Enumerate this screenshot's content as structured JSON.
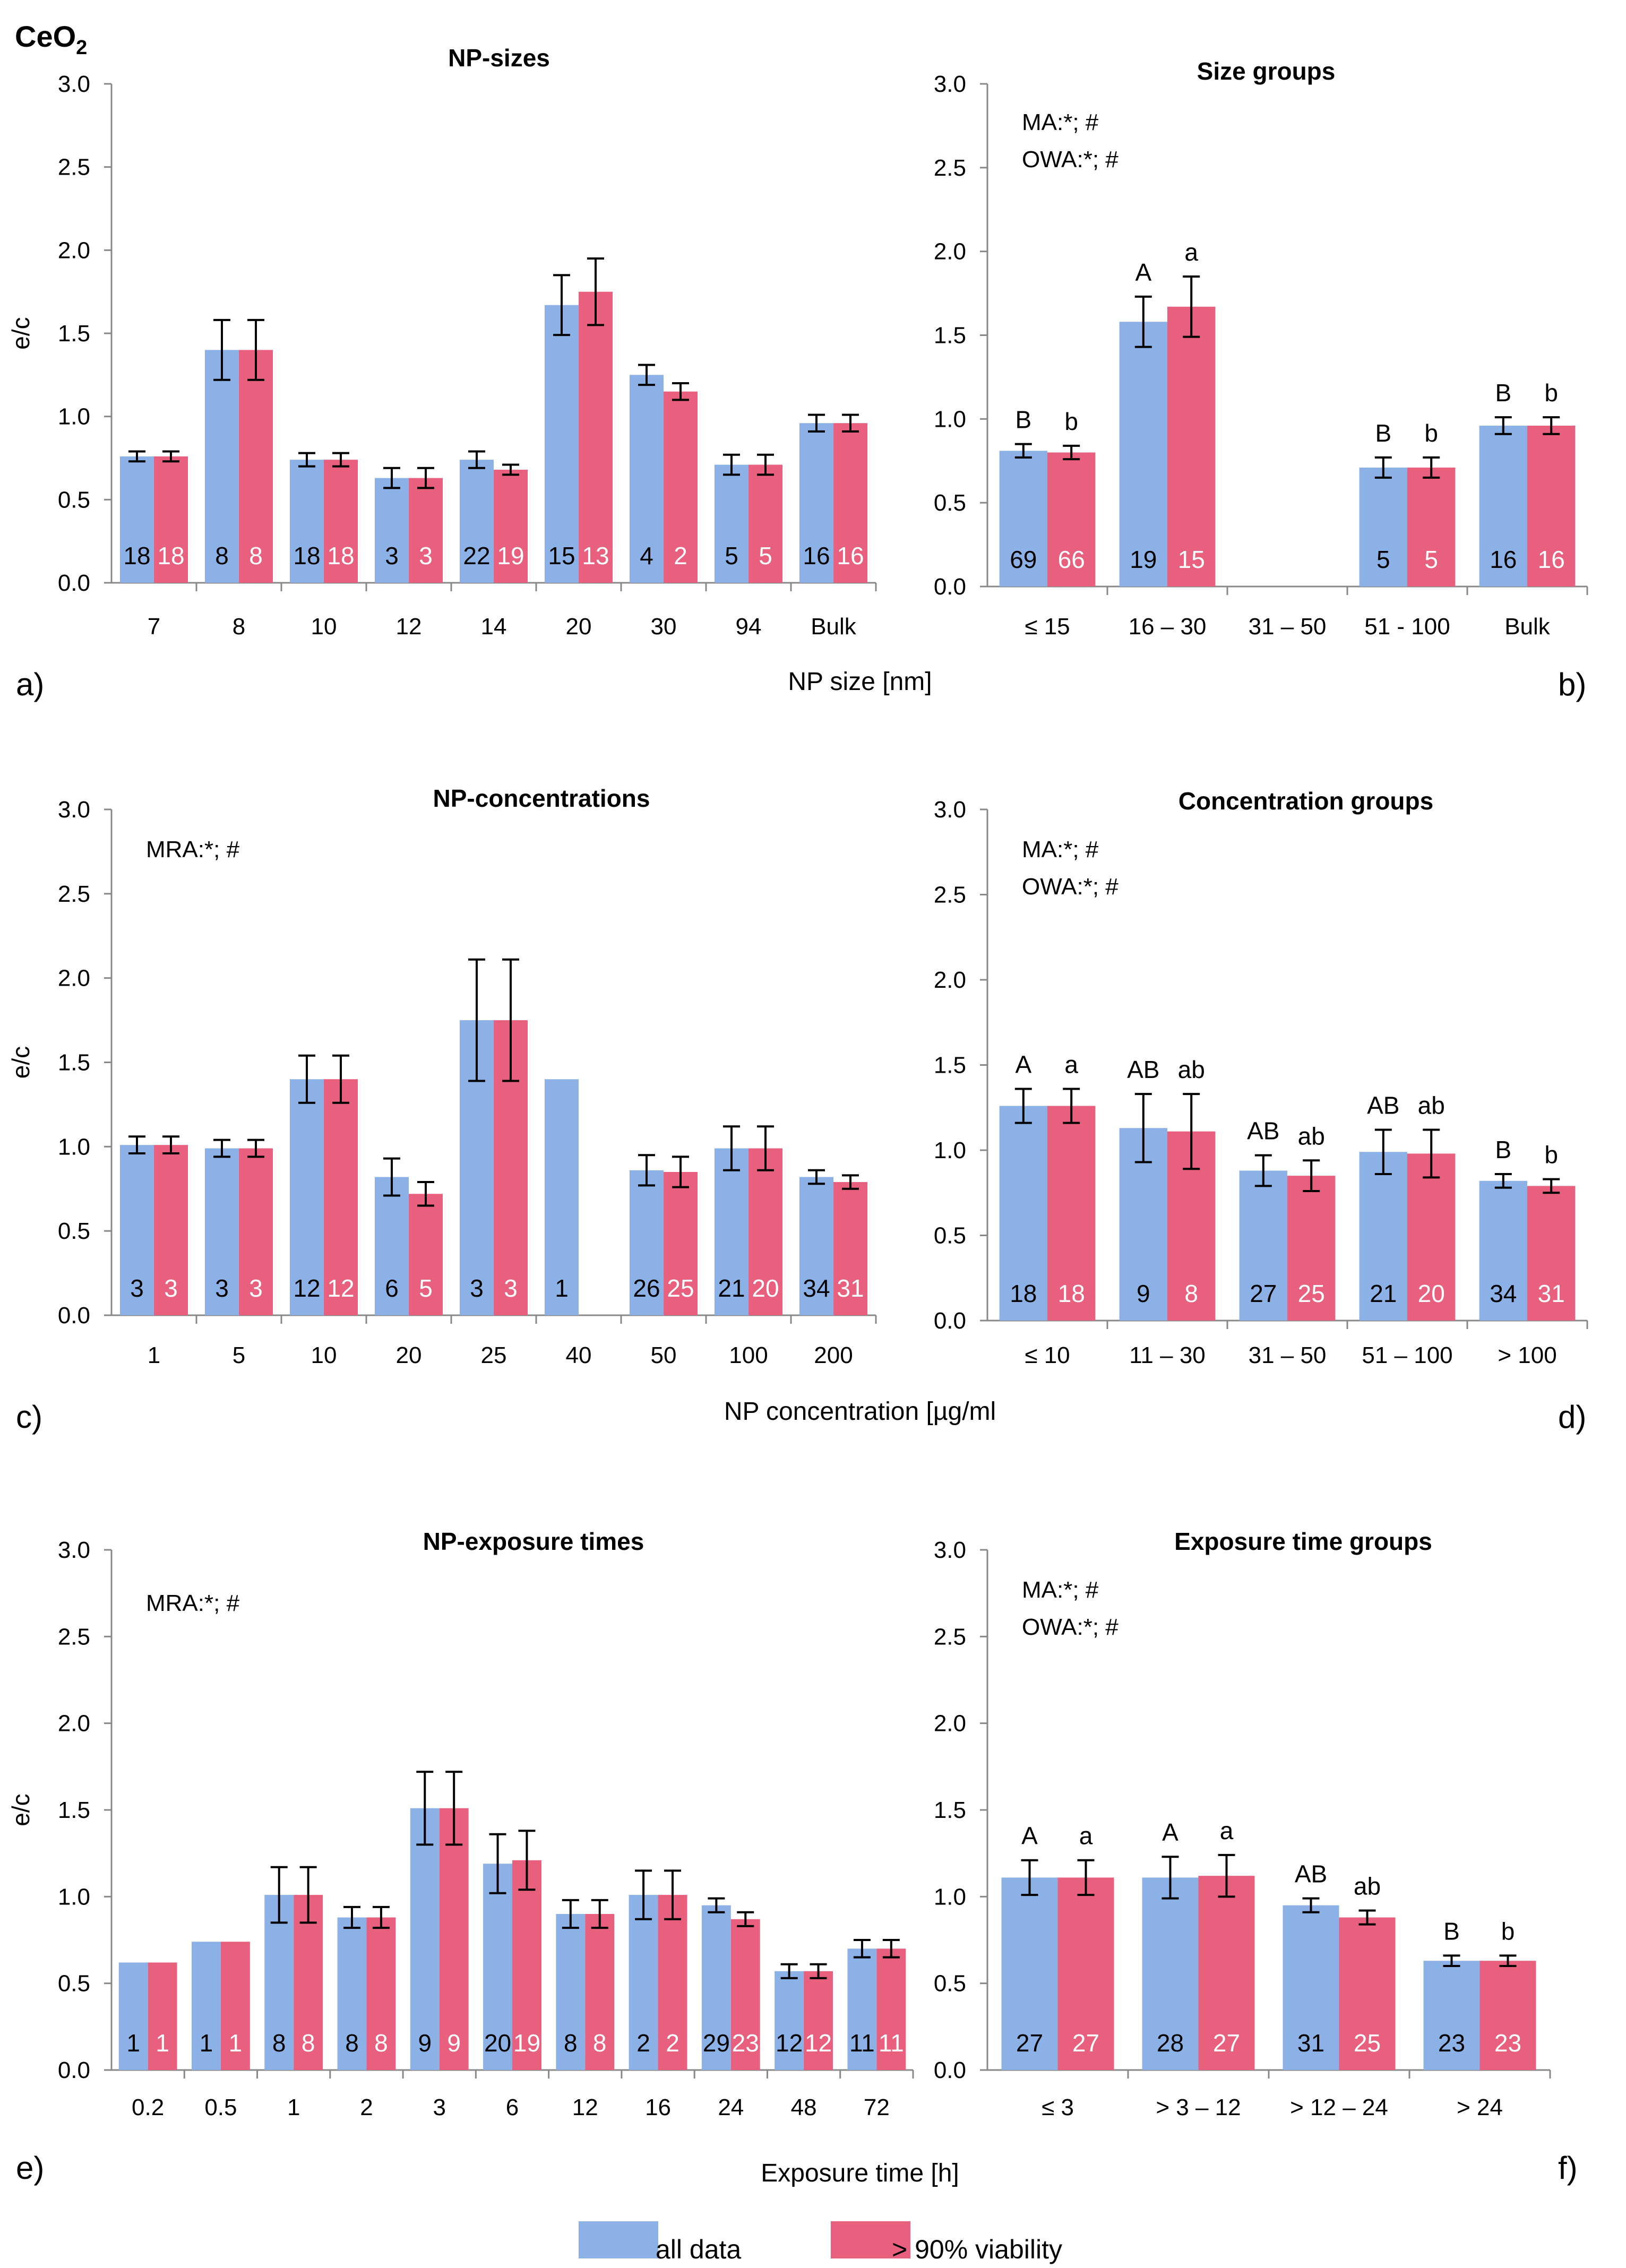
{
  "figure_label": "CeO2",
  "figure_label_parts": {
    "base": "CeO",
    "sub": "2"
  },
  "legend": [
    {
      "name": "all data",
      "color": "#8cb1e6"
    },
    {
      "name": "> 90% viability",
      "color": "#e8607e"
    }
  ],
  "x_titles": {
    "row1": "NP size [nm]",
    "row2": "NP concentration [µg/ml",
    "row3": "Exposure time [h]"
  },
  "chart_data": [
    {
      "id": "a",
      "panel_label": "a)",
      "type": "bar",
      "title": "NP-sizes",
      "ylabel": "e/c",
      "ylim": [
        0,
        3
      ],
      "yticks": [
        "0.0",
        "0.5",
        "1.0",
        "1.5",
        "2.0",
        "2.5",
        "3.0"
      ],
      "stats": [],
      "categories": [
        "7",
        "8",
        "10",
        "12",
        "14",
        "20",
        "30",
        "94",
        "Bulk"
      ],
      "series": [
        {
          "name": "all data",
          "values": [
            0.76,
            1.4,
            0.74,
            0.63,
            0.74,
            1.67,
            1.25,
            0.71,
            0.96
          ],
          "errors": [
            0.03,
            0.18,
            0.04,
            0.06,
            0.05,
            0.18,
            0.06,
            0.06,
            0.05
          ],
          "n": [
            "18",
            "8",
            "18",
            "3",
            "22",
            "15",
            "4",
            "5",
            "16"
          ],
          "letters": []
        },
        {
          "name": "> 90% viability",
          "values": [
            0.76,
            1.4,
            0.74,
            0.63,
            0.68,
            1.75,
            1.15,
            0.71,
            0.96
          ],
          "errors": [
            0.03,
            0.18,
            0.04,
            0.06,
            0.03,
            0.2,
            0.05,
            0.06,
            0.05
          ],
          "n": [
            "18",
            "8",
            "18",
            "3",
            "19",
            "13",
            "2",
            "5",
            "16"
          ],
          "letters": []
        }
      ]
    },
    {
      "id": "b",
      "panel_label": "b)",
      "type": "bar",
      "title": "Size groups",
      "ylabel": "",
      "ylim": [
        0,
        3
      ],
      "yticks": [
        "0.0",
        "0.5",
        "1.0",
        "1.5",
        "2.0",
        "2.5",
        "3.0"
      ],
      "stats": [
        "MA:*; #",
        "OWA:*; #"
      ],
      "categories": [
        "≤ 15",
        "16 – 30",
        "31 – 50",
        "51 - 100",
        "Bulk"
      ],
      "series": [
        {
          "name": "all data",
          "values": [
            0.81,
            1.58,
            null,
            0.71,
            0.96
          ],
          "errors": [
            0.04,
            0.15,
            null,
            0.06,
            0.05
          ],
          "n": [
            "69",
            "19",
            "",
            "5",
            "16"
          ],
          "letters": [
            "B",
            "A",
            "",
            "B",
            "B"
          ]
        },
        {
          "name": "> 90% viability",
          "values": [
            0.8,
            1.67,
            null,
            0.71,
            0.96
          ],
          "errors": [
            0.04,
            0.18,
            null,
            0.06,
            0.05
          ],
          "n": [
            "66",
            "15",
            "",
            "5",
            "16"
          ],
          "letters": [
            "b",
            "a",
            "",
            "b",
            "b"
          ]
        }
      ]
    },
    {
      "id": "c",
      "panel_label": "c)",
      "type": "bar",
      "title": "NP-concentrations",
      "ylabel": "e/c",
      "ylim": [
        0,
        3
      ],
      "yticks": [
        "0.0",
        "0.5",
        "1.0",
        "1.5",
        "2.0",
        "2.5",
        "3.0"
      ],
      "stats": [
        "MRA:*; #"
      ],
      "categories": [
        "1",
        "5",
        "10",
        "20",
        "25",
        "40",
        "50",
        "100",
        "200"
      ],
      "series": [
        {
          "name": "all data",
          "values": [
            1.01,
            0.99,
            1.4,
            0.82,
            1.75,
            1.4,
            0.86,
            0.99,
            0.82
          ],
          "errors": [
            0.05,
            0.05,
            0.14,
            0.11,
            0.36,
            null,
            0.09,
            0.13,
            0.04
          ],
          "n": [
            "3",
            "3",
            "12",
            "6",
            "3",
            "1",
            "26",
            "21",
            "34"
          ],
          "letters": []
        },
        {
          "name": "> 90% viability",
          "values": [
            1.01,
            0.99,
            1.4,
            0.72,
            1.75,
            null,
            0.85,
            0.99,
            0.79
          ],
          "errors": [
            0.05,
            0.05,
            0.14,
            0.07,
            0.36,
            null,
            0.09,
            0.13,
            0.04
          ],
          "n": [
            "3",
            "3",
            "12",
            "5",
            "3",
            "",
            "25",
            "20",
            "31"
          ],
          "letters": []
        }
      ]
    },
    {
      "id": "d",
      "panel_label": "d)",
      "type": "bar",
      "title": "Concentration groups",
      "ylabel": "",
      "ylim": [
        0,
        3
      ],
      "yticks": [
        "0.0",
        "0.5",
        "1.0",
        "1.5",
        "2.0",
        "2.5",
        "3.0"
      ],
      "stats": [
        "MA:*; #",
        "OWA:*; #"
      ],
      "categories": [
        "≤ 10",
        "11 – 30",
        "31 – 50",
        "51 – 100",
        "> 100"
      ],
      "series": [
        {
          "name": "all data",
          "values": [
            1.26,
            1.13,
            0.88,
            0.99,
            0.82
          ],
          "errors": [
            0.1,
            0.2,
            0.09,
            0.13,
            0.04
          ],
          "n": [
            "18",
            "9",
            "27",
            "21",
            "34"
          ],
          "letters": [
            "A",
            "AB",
            "AB",
            "AB",
            "B"
          ]
        },
        {
          "name": "> 90% viability",
          "values": [
            1.26,
            1.11,
            0.85,
            0.98,
            0.79
          ],
          "errors": [
            0.1,
            0.22,
            0.09,
            0.14,
            0.04
          ],
          "n": [
            "18",
            "8",
            "25",
            "20",
            "31"
          ],
          "letters": [
            "a",
            "ab",
            "ab",
            "ab",
            "b"
          ]
        }
      ]
    },
    {
      "id": "e",
      "panel_label": "e)",
      "type": "bar",
      "title": "NP-exposure times",
      "ylabel": "e/c",
      "ylim": [
        0,
        3
      ],
      "yticks": [
        "0.0",
        "0.5",
        "1.0",
        "1.5",
        "2.0",
        "2.5",
        "3.0"
      ],
      "stats": [
        "MRA:*; #"
      ],
      "categories": [
        "0.2",
        "0.5",
        "1",
        "2",
        "3",
        "6",
        "12",
        "16",
        "24",
        "48",
        "72"
      ],
      "series": [
        {
          "name": "all data",
          "values": [
            0.62,
            0.74,
            1.01,
            0.88,
            1.51,
            1.19,
            0.9,
            1.01,
            0.95,
            0.57,
            0.7
          ],
          "errors": [
            null,
            null,
            0.16,
            0.06,
            0.21,
            0.17,
            0.08,
            0.14,
            0.04,
            0.04,
            0.05
          ],
          "n": [
            "1",
            "1",
            "8",
            "8",
            "9",
            "20",
            "8",
            "2",
            "29",
            "12",
            "11"
          ],
          "letters": []
        },
        {
          "name": "> 90% viability",
          "values": [
            0.62,
            0.74,
            1.01,
            0.88,
            1.51,
            1.21,
            0.9,
            1.01,
            0.87,
            0.57,
            0.7
          ],
          "errors": [
            null,
            null,
            0.16,
            0.06,
            0.21,
            0.17,
            0.08,
            0.14,
            0.04,
            0.04,
            0.05
          ],
          "n": [
            "1",
            "1",
            "8",
            "8",
            "9",
            "19",
            "8",
            "2",
            "23",
            "12",
            "11"
          ],
          "letters": []
        }
      ]
    },
    {
      "id": "f",
      "panel_label": "f)",
      "type": "bar",
      "title": "Exposure time groups",
      "ylabel": "",
      "ylim": [
        0,
        3
      ],
      "yticks": [
        "0.0",
        "0.5",
        "1.0",
        "1.5",
        "2.0",
        "2.5",
        "3.0"
      ],
      "stats": [
        "MA:*; #",
        "OWA:*; #"
      ],
      "categories": [
        "≤ 3",
        "> 3 – 12",
        "> 12 – 24",
        "> 24"
      ],
      "series": [
        {
          "name": "all data",
          "values": [
            1.11,
            1.11,
            0.95,
            0.63
          ],
          "errors": [
            0.1,
            0.12,
            0.04,
            0.03
          ],
          "n": [
            "27",
            "28",
            "31",
            "23"
          ],
          "letters": [
            "A",
            "A",
            "AB",
            "B"
          ]
        },
        {
          "name": "> 90% viability",
          "values": [
            1.11,
            1.12,
            0.88,
            0.63
          ],
          "errors": [
            0.1,
            0.12,
            0.04,
            0.03
          ],
          "n": [
            "27",
            "27",
            "25",
            "23"
          ],
          "letters": [
            "a",
            "a",
            "ab",
            "b"
          ]
        }
      ]
    }
  ]
}
